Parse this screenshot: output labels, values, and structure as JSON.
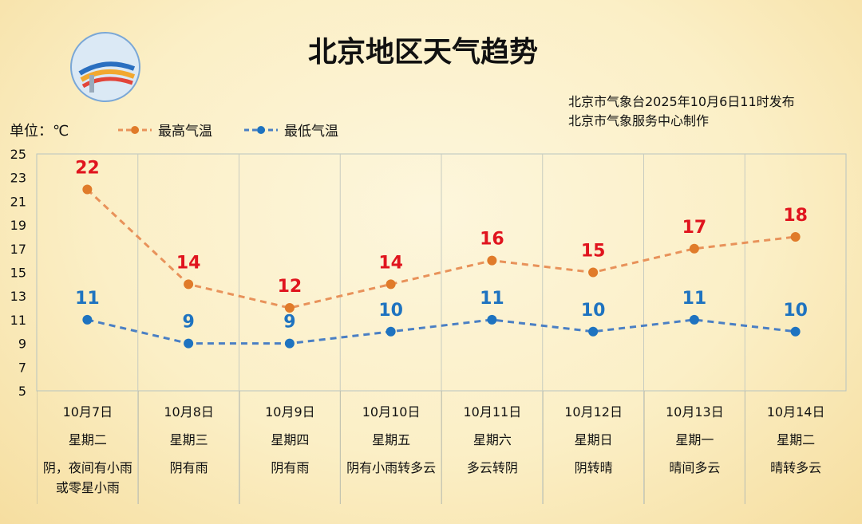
{
  "title": "北京地区天气趋势",
  "publisher": [
    "北京市气象台2025年10月6日11时发布",
    "北京市气象服务中心制作"
  ],
  "logo_text": "METEOROLOGICAL SERVICE BEIJING 气象服务",
  "unit_label": "单位：℃",
  "chart_data": {
    "type": "line",
    "categories": [
      "10月7日",
      "10月8日",
      "10月9日",
      "10月10日",
      "10月11日",
      "10月12日",
      "10月13日",
      "10月14日"
    ],
    "weekdays": [
      "星期二",
      "星期三",
      "星期四",
      "星期五",
      "星期六",
      "星期日",
      "星期一",
      "星期二"
    ],
    "weather": [
      "阴，夜间有小雨或零星小雨",
      "阴有雨",
      "阴有雨",
      "阴有小雨转多云",
      "多云转阴",
      "阴转晴",
      "晴间多云",
      "晴转多云"
    ],
    "series": [
      {
        "name": "最高气温",
        "values": [
          22,
          14,
          12,
          14,
          16,
          15,
          17,
          18
        ],
        "color": "#e8925a",
        "marker_color": "#e07b2a",
        "label_color": "#e0141e"
      },
      {
        "name": "最低气温",
        "values": [
          11,
          9,
          9,
          10,
          11,
          10,
          11,
          10
        ],
        "color": "#4a7fc4",
        "marker_color": "#1e73c0",
        "label_color": "#1e73c0"
      }
    ],
    "ylim": [
      5,
      25
    ],
    "yticks": [
      5,
      7,
      9,
      11,
      13,
      15,
      17,
      19,
      21,
      23,
      25
    ],
    "grid": "vertical",
    "legend": "top-left",
    "line_style": "dashed"
  }
}
